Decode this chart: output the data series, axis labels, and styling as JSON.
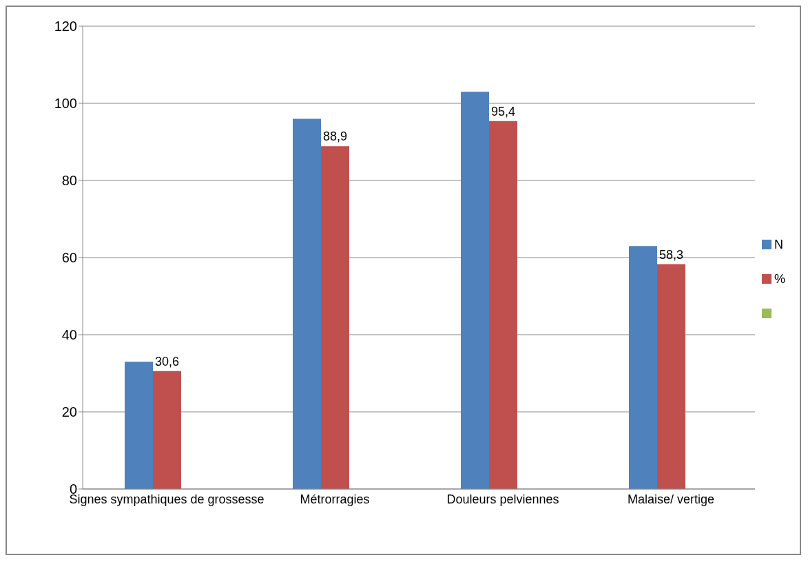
{
  "chart_data": {
    "type": "bar",
    "categories": [
      "Signes sympathiques de grossesse",
      "Métrorragies",
      "Douleurs pelviennes",
      "Malaise/ vertige"
    ],
    "series": [
      {
        "name": "N",
        "color": "#4f81bd",
        "values": [
          33,
          96,
          103,
          63
        ]
      },
      {
        "name": "%",
        "color": "#c0504d",
        "values": [
          30.6,
          88.9,
          95.4,
          58.3
        ],
        "value_labels": [
          "30,6",
          "88,9",
          "95,4",
          "58,3"
        ]
      },
      {
        "color": "#9bbb59",
        "values": [
          null,
          null,
          null,
          null
        ]
      }
    ],
    "ylim": [
      0,
      120
    ],
    "yticks": [
      0,
      20,
      40,
      60,
      80,
      100,
      120
    ],
    "grid": "y",
    "legend": "right"
  }
}
